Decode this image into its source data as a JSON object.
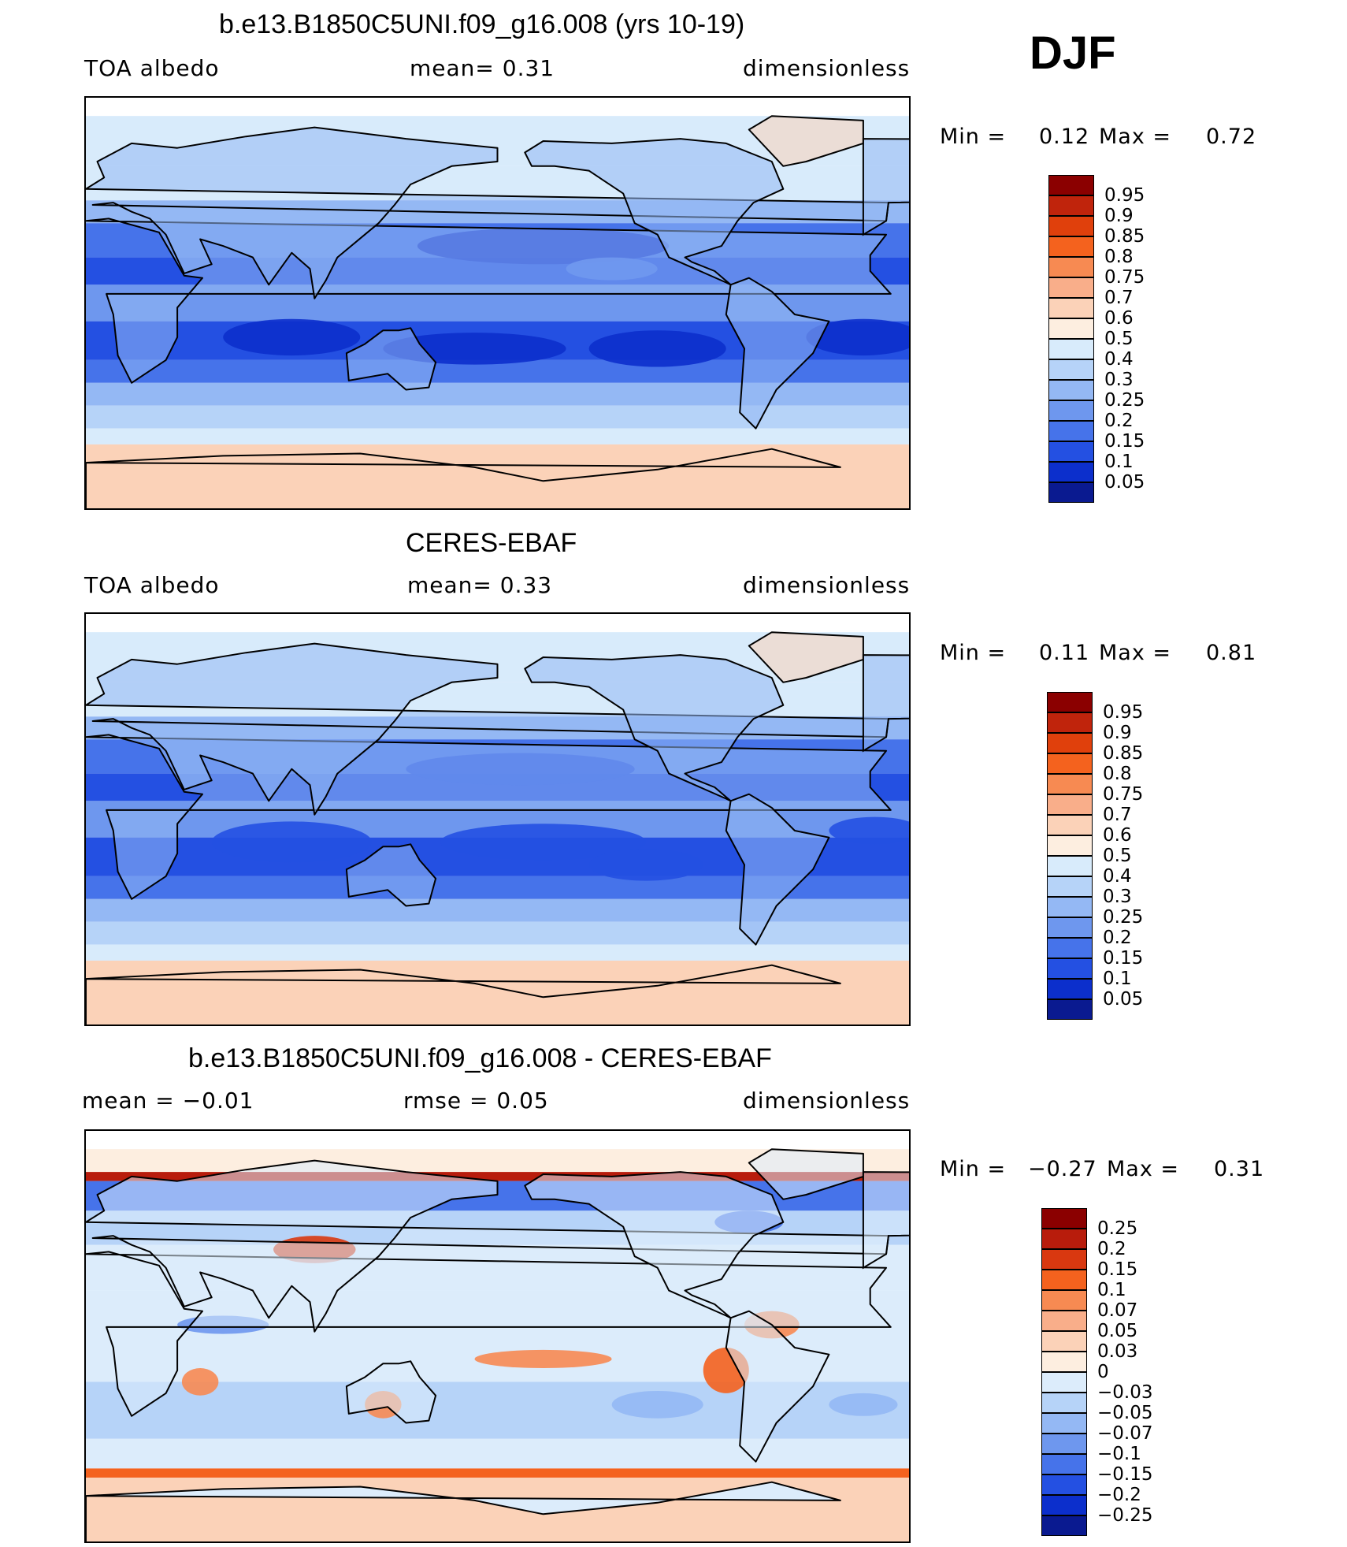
{
  "season": "DJF",
  "panels": [
    {
      "id": "model",
      "title": "b.e13.B1850C5UNI.f09_g16.008 (yrs 10-19)",
      "left_label": "TOA  albedo",
      "center_label": "mean=     0.31",
      "right_label": "dimensionless",
      "min_label": "Min  =",
      "min_value": "0.12",
      "max_label": "Max  =",
      "max_value": "0.72",
      "palette": "seq"
    },
    {
      "id": "obs",
      "title": "CERES-EBAF",
      "left_label": "TOA  albedo",
      "center_label": "mean=     0.33",
      "right_label": "dimensionless",
      "min_label": "Min  =",
      "min_value": "0.11",
      "max_label": "Max  =",
      "max_value": "0.81",
      "palette": "seq"
    },
    {
      "id": "diff",
      "title": "b.e13.B1850C5UNI.f09_g16.008 - CERES-EBAF",
      "left_label": "mean  =    −0.01",
      "center_label": "rmse  =     0.05",
      "right_label": "dimensionless",
      "min_label": "Min  =",
      "min_value": "−0.27",
      "max_label": "Max  =",
      "max_value": "0.31",
      "palette": "div"
    }
  ],
  "chart_data": {
    "type": "heatmap",
    "projection": "cylindrical equidistant, centered on dateline",
    "colorbars": {
      "seq": {
        "levels": [
          "0.95",
          "0.9",
          "0.85",
          "0.8",
          "0.75",
          "0.7",
          "0.6",
          "0.5",
          "0.4",
          "0.3",
          "0.25",
          "0.2",
          "0.15",
          "0.1",
          "0.05"
        ],
        "colors": [
          "#8b0000",
          "#c0240c",
          "#e0400c",
          "#f4621e",
          "#f78a52",
          "#f9ae8a",
          "#fbd2b8",
          "#fdeee0",
          "#d8ebfb",
          "#b6d3f8",
          "#94b8f4",
          "#6e97ee",
          "#4673ea",
          "#2450e2",
          "#0c2fcc",
          "#0a1a90"
        ]
      },
      "div": {
        "levels": [
          "0.25",
          "0.2",
          "0.15",
          "0.1",
          "0.07",
          "0.05",
          "0.03",
          "0",
          "−0.03",
          "−0.05",
          "−0.07",
          "−0.1",
          "−0.15",
          "−0.2",
          "−0.25"
        ],
        "colors": [
          "#8b0000",
          "#b81c0c",
          "#d93810",
          "#f4621e",
          "#f78a52",
          "#f9ae8a",
          "#fbd2b8",
          "#fdeee0",
          "#dcecfb",
          "#b6d3f8",
          "#94b8f4",
          "#6e97ee",
          "#4673ea",
          "#2450e2",
          "#0c2fcc",
          "#0a1a90"
        ]
      }
    }
  }
}
